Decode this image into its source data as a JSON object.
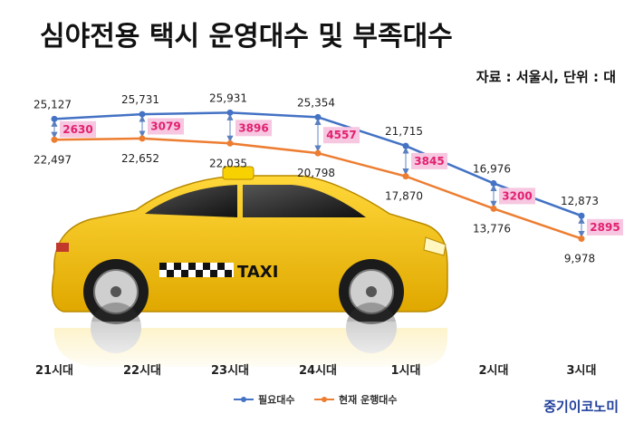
{
  "title": "심야전용 택시 운영대수 및 부족대수",
  "source_note": "자료 : 서울시, 단위 : 대",
  "brand": "중기이코노미",
  "image_labels": {
    "taxi_sign": "TAXI"
  },
  "colors": {
    "required": "#4472c4",
    "current": "#ed7d31",
    "diff_text": "#e2206f",
    "diff_box": "#f7c6e0",
    "taxi_body": "#f5c400"
  },
  "chart_data": {
    "type": "line",
    "categories": [
      "21시대",
      "22시대",
      "23시대",
      "24시대",
      "1시대",
      "2시대",
      "3시대"
    ],
    "series": [
      {
        "name": "필요대수",
        "values": [
          25127,
          25731,
          25931,
          25354,
          21715,
          16976,
          12873
        ],
        "labels": [
          "25,127",
          "25,731",
          "25,931",
          "25,354",
          "21,715",
          "16,976",
          "12,873"
        ]
      },
      {
        "name": "현재 운행대수",
        "values": [
          22497,
          22652,
          22035,
          20798,
          17870,
          13776,
          9978
        ],
        "labels": [
          "22,497",
          "22,652",
          "22,035",
          "20,798",
          "17,870",
          "13,776",
          "9,978"
        ]
      }
    ],
    "differences": [
      "2630",
      "3079",
      "3896",
      "4557",
      "3845",
      "3200",
      "2895"
    ],
    "ylim": [
      9000,
      27000
    ],
    "legend_position": "bottom",
    "grid": false
  }
}
